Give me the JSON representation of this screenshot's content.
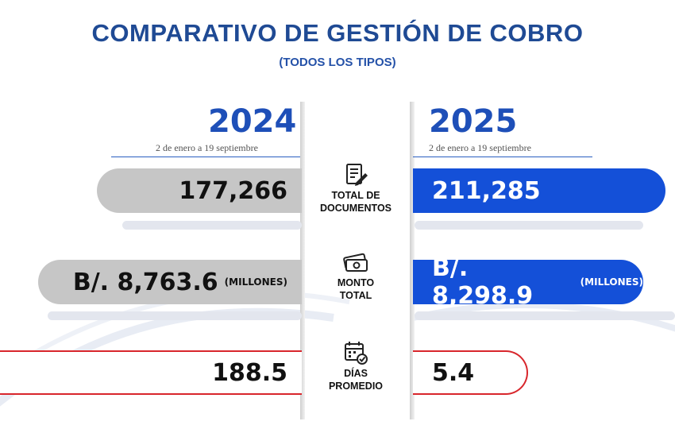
{
  "header": {
    "title": "COMPARATIVO DE GESTIÓN DE COBRO",
    "subtitle": "(TODOS LOS TIPOS)"
  },
  "columns": {
    "left": {
      "year": "2024",
      "date_range": "2 de enero a 19 septiembre"
    },
    "right": {
      "year": "2025",
      "date_range": "2 de enero a 19 septiembre"
    }
  },
  "metrics": [
    {
      "label_line1": "TOTAL DE",
      "label_line2": "DOCUMENTOS",
      "icon": "document-icon",
      "value_2024": "177,266",
      "value_2025": "211,285",
      "unit": ""
    },
    {
      "label_line1": "MONTO",
      "label_line2": "TOTAL",
      "icon": "money-icon",
      "value_2024": "B/. 8,763.6",
      "value_2025": "B/. 8,298.9",
      "unit": "(MILLONES)"
    },
    {
      "label_line1": "DÍAS",
      "label_line2": "PROMEDIO",
      "icon": "calendar-icon",
      "value_2024": "188.5",
      "value_2025": "5.4",
      "unit": ""
    }
  ],
  "colors": {
    "title": "#1f4a94",
    "year": "#1e4fb8",
    "bar_2025": "#1450d8",
    "bar_2024": "#c6c6c6",
    "highlight": "#d8262c"
  }
}
